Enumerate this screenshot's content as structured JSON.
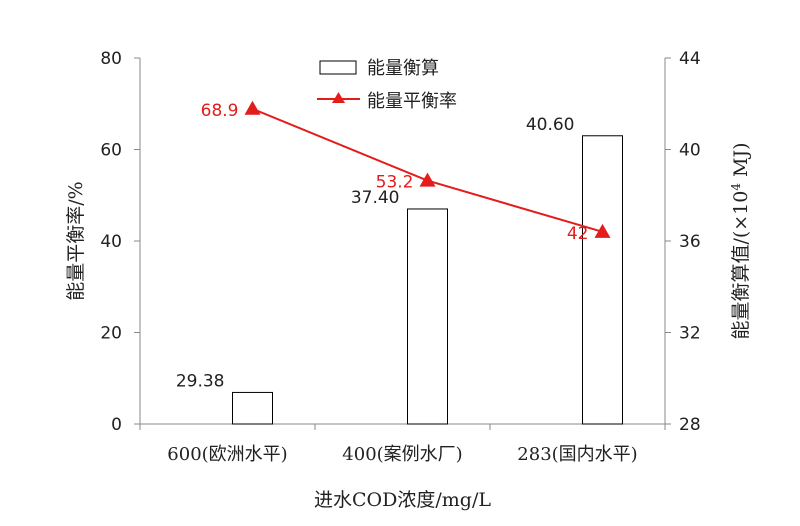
{
  "chart_data": {
    "type": "bar+line",
    "categories": [
      "600(欧洲水平)",
      "400(案例水厂)",
      "283(国内水平)"
    ],
    "xlabel": "进水COD浓度/mg/L",
    "y_left": {
      "label": "能量平衡率/%",
      "ticks": [
        "0",
        "20",
        "40",
        "60",
        "80"
      ],
      "range": [
        0,
        80
      ]
    },
    "y_right": {
      "label_prefix": "能量衡算值/(×10",
      "label_sup": "4",
      "label_suffix": " MJ)",
      "ticks": [
        "28",
        "32",
        "36",
        "40",
        "44"
      ],
      "range": [
        28,
        44
      ]
    },
    "series": [
      {
        "name": "能量衡算",
        "kind": "bar",
        "axis": "right",
        "values": [
          29.38,
          37.4,
          40.6
        ],
        "labels": [
          "29.38",
          "37.40",
          "40.60"
        ],
        "fill": "#ffffff",
        "stroke": "#000000"
      },
      {
        "name": "能量平衡率",
        "kind": "line",
        "axis": "left",
        "values": [
          68.9,
          53.2,
          42
        ],
        "labels": [
          "68.9",
          "53.2",
          "42"
        ],
        "color": "#e31c1c"
      }
    ],
    "legend": "top-center",
    "grid": false
  }
}
